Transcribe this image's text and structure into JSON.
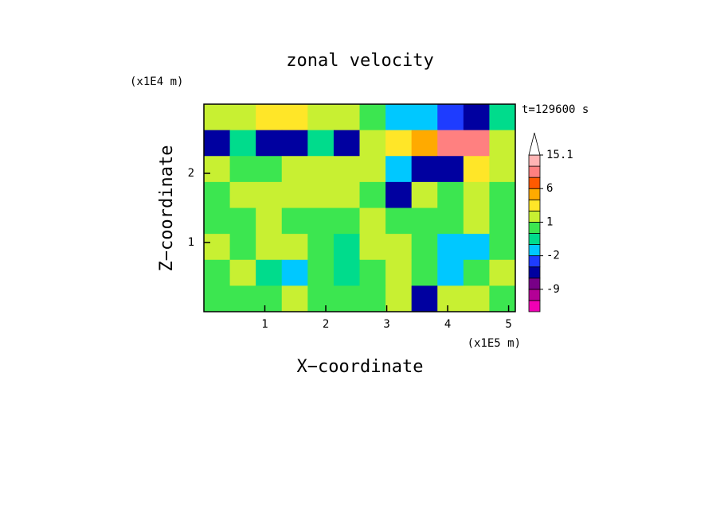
{
  "chart_data": {
    "type": "contour",
    "title": "zonal velocity",
    "x_label": "X−coordinate",
    "y_label": "Z−coordinate",
    "x_unit": "(x1E5 m)",
    "y_unit": "(x1E4 m)",
    "annotation": "t=129600 s",
    "xlim": [
      0,
      5.11
    ],
    "ylim": [
      0,
      3
    ],
    "xticks": [
      1,
      2,
      3,
      4,
      5
    ],
    "yticks": [
      1,
      2
    ],
    "levels": [
      -15,
      -12,
      -9,
      -6,
      -4,
      -2,
      -1,
      0,
      1,
      2,
      4,
      6,
      9,
      12,
      15.1
    ],
    "colors": [
      "#f000b4",
      "#b40096",
      "#780087",
      "#0000a0",
      "#1e3cff",
      "#00c8ff",
      "#00dc8c",
      "#3ce650",
      "#c8f032",
      "#ffe628",
      "#ffaa00",
      "#ff5a00",
      "#ff8080",
      "#ffb4b4"
    ],
    "colorbar_ticks": [
      -9,
      -2,
      1,
      6,
      15.1
    ],
    "z": [
      [
        1.5,
        1.5,
        2.5,
        2.5,
        1.5,
        1.5,
        0.5,
        -1.5,
        -1.5,
        -3,
        -5,
        -1
      ],
      [
        -5,
        -1,
        -6,
        -6,
        -1,
        -5,
        1.5,
        3,
        5,
        9,
        9,
        1.5
      ],
      [
        1.5,
        0.5,
        0.5,
        1.5,
        1.5,
        1.5,
        1.5,
        -1.5,
        -5,
        -5,
        3,
        1.5
      ],
      [
        0.5,
        1.5,
        1.5,
        1.5,
        1.5,
        1.5,
        0.5,
        -5,
        1.5,
        0.5,
        1.5,
        0.5
      ],
      [
        0.5,
        0.5,
        1.5,
        0.5,
        0.5,
        0.5,
        1.5,
        0.5,
        0.5,
        0.5,
        1.5,
        0.5
      ],
      [
        1.5,
        0.5,
        1.5,
        1.5,
        0.5,
        -0.5,
        1.5,
        1.5,
        0.5,
        -1.5,
        -1.5,
        0.5
      ],
      [
        0.5,
        1.5,
        -0.5,
        -1.5,
        0.5,
        -0.5,
        0.5,
        1.5,
        0.5,
        -1.5,
        0.5,
        1.5
      ],
      [
        0.5,
        0.5,
        0.5,
        1.5,
        0.5,
        0.5,
        0.5,
        1.5,
        -5,
        1.5,
        1.5,
        0.5
      ]
    ]
  }
}
